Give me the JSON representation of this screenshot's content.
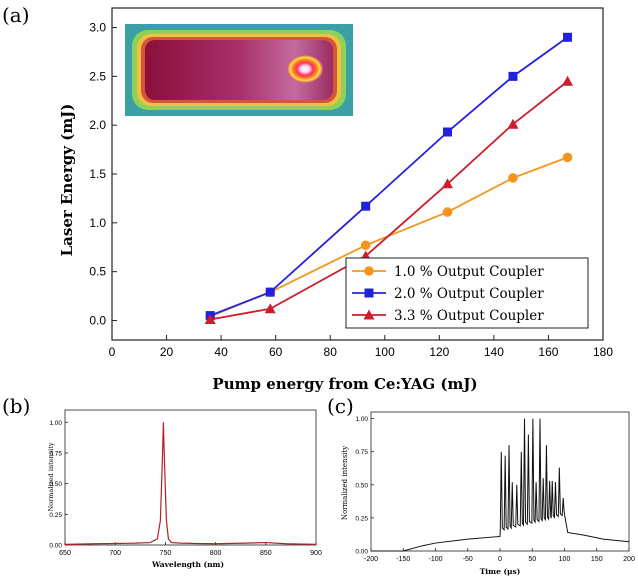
{
  "chart_data": [
    {
      "type": "line",
      "panel_label": "(a)",
      "xlabel": "Pump energy from Ce:YAG (mJ)",
      "ylabel": "Laser Energy (mJ)",
      "xlim": [
        0,
        180
      ],
      "ylim": [
        -0.2,
        3.2
      ],
      "xticks": [
        "0",
        "20",
        "40",
        "60",
        "80",
        "100",
        "120",
        "140",
        "160",
        "180"
      ],
      "yticks": [
        "0.0",
        "0.5",
        "1.0",
        "1.5",
        "2.0",
        "2.5",
        "3.0"
      ],
      "legend_position": "bottom-right",
      "inset": "beam-profile-image",
      "x": [
        36,
        58,
        93,
        123,
        147,
        167
      ],
      "series": [
        {
          "name": "1.0 % Output Coupler",
          "color": "#f7941d",
          "marker": "circle",
          "values": [
            0.04,
            0.29,
            0.77,
            1.11,
            1.46,
            1.67
          ]
        },
        {
          "name": "2.0 % Output Coupler",
          "color": "#2222dd",
          "marker": "square",
          "values": [
            0.05,
            0.29,
            1.17,
            1.93,
            2.5,
            2.9
          ]
        },
        {
          "name": "3.3 % Output Coupler",
          "color": "#cc1e2e",
          "marker": "triangle",
          "values": [
            0.01,
            0.12,
            0.66,
            1.4,
            2.01,
            2.45
          ]
        }
      ]
    },
    {
      "type": "line",
      "panel_label": "(b)",
      "xlabel": "Wavelength (nm)",
      "ylabel": "Normalized intensity",
      "xlim": [
        650,
        900
      ],
      "ylim": [
        0,
        1.1
      ],
      "xticks": [
        "650",
        "700",
        "750",
        "800",
        "850",
        "900"
      ],
      "yticks": [
        "0.00",
        "0.25",
        "0.50",
        "0.75",
        "1.00"
      ],
      "color": "#b22222",
      "x": [
        650,
        680,
        700,
        720,
        735,
        742,
        745,
        747,
        748,
        749,
        751,
        753,
        756,
        765,
        780,
        800,
        830,
        850,
        870,
        900
      ],
      "y": [
        0.005,
        0.01,
        0.012,
        0.015,
        0.02,
        0.05,
        0.2,
        0.7,
        1.0,
        0.7,
        0.2,
        0.05,
        0.02,
        0.015,
        0.012,
        0.01,
        0.015,
        0.02,
        0.01,
        0.005
      ]
    },
    {
      "type": "line",
      "panel_label": "(c)",
      "xlabel": "Time (μs)",
      "ylabel": "Normalized intensity",
      "xlim": [
        -200,
        200
      ],
      "ylim": [
        0,
        1.05
      ],
      "xticks": [
        "-200",
        "-150",
        "-100",
        "-50",
        "0",
        "50",
        "100",
        "150",
        "200"
      ],
      "yticks": [
        "0.00",
        "0.25",
        "0.50",
        "0.75",
        "1.00"
      ],
      "color": "#111111",
      "baseline": [
        [
          -200,
          0.0
        ],
        [
          -170,
          0.0
        ],
        [
          -150,
          0.0
        ],
        [
          -120,
          0.04
        ],
        [
          -100,
          0.06
        ],
        [
          -50,
          0.09
        ],
        [
          0,
          0.11
        ]
      ],
      "tail": [
        [
          105,
          0.14
        ],
        [
          130,
          0.12
        ],
        [
          160,
          0.09
        ],
        [
          200,
          0.07
        ]
      ],
      "pulses": [
        {
          "t": 2,
          "h": 0.75
        },
        {
          "t": 8,
          "h": 0.72
        },
        {
          "t": 14,
          "h": 0.8
        },
        {
          "t": 19,
          "h": 0.52
        },
        {
          "t": 26,
          "h": 0.5
        },
        {
          "t": 33,
          "h": 0.75
        },
        {
          "t": 38,
          "h": 1.0
        },
        {
          "t": 44,
          "h": 0.88
        },
        {
          "t": 51,
          "h": 1.0
        },
        {
          "t": 56,
          "h": 0.52
        },
        {
          "t": 62,
          "h": 1.0
        },
        {
          "t": 67,
          "h": 0.55
        },
        {
          "t": 72,
          "h": 0.8
        },
        {
          "t": 77,
          "h": 0.53
        },
        {
          "t": 81,
          "h": 0.53
        },
        {
          "t": 86,
          "h": 0.52
        },
        {
          "t": 92,
          "h": 0.63
        },
        {
          "t": 98,
          "h": 0.4
        }
      ]
    }
  ]
}
